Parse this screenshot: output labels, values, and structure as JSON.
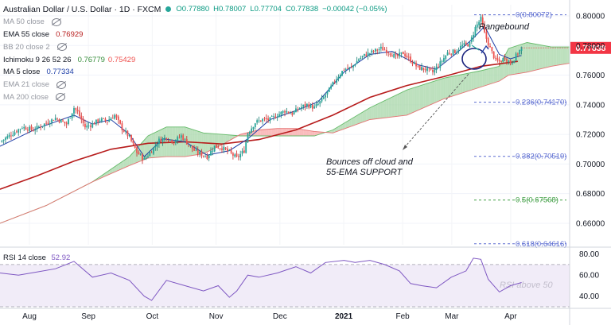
{
  "header": {
    "symbol": "Australian Dollar / U.S. Dollar · 1D · FXCM",
    "ohlc": {
      "o": "O0.77880",
      "h": "H0.78007",
      "l": "L0.77704",
      "c": "C0.77838",
      "chg": "−0.00042 (−0.05%)"
    }
  },
  "indicators": [
    {
      "label": "MA 50 close",
      "value": "",
      "value2": "",
      "hidden": true,
      "color": "#787b86"
    },
    {
      "label": "EMA 55 close",
      "value": "0.76929",
      "value2": "",
      "hidden": false,
      "color": "#b71c1c"
    },
    {
      "label": "BB 20 close 2",
      "value": "",
      "value2": "",
      "hidden": true,
      "color": "#787b86"
    },
    {
      "label": "Ichimoku 9 26 52 26",
      "value": "0.76779",
      "value2": "0.75429",
      "hidden": false,
      "color": "#388e3c",
      "color2": "#ef5350"
    },
    {
      "label": "MA 5 close",
      "value": "0.77334",
      "value2": "",
      "hidden": false,
      "color": "#1e3fa8"
    },
    {
      "label": "EMA 21 close",
      "value": "",
      "value2": "",
      "hidden": true,
      "color": "#787b86"
    },
    {
      "label": "MA 200 close",
      "value": "",
      "value2": "",
      "hidden": true,
      "color": "#787b86"
    }
  ],
  "rsi": {
    "label": "RSI 14 close",
    "value": "52.92"
  },
  "last_price": {
    "value": "0.77838",
    "color": "#f23645"
  },
  "annotations": {
    "rangebound": "Rangebound",
    "bounce_line1": "Bounces off cloud and",
    "bounce_line2": "55-EMA SUPPORT",
    "rsi_note": "RSI above 50"
  },
  "fib_levels": [
    {
      "label": "0(0.80072)",
      "value": 0.80072,
      "color": "#5b6cd1"
    },
    {
      "label": "0.236(0.74170)",
      "value": 0.7417,
      "color": "#5b6cd1"
    },
    {
      "label": "0.382(0.70519)",
      "value": 0.70519,
      "color": "#5b6cd1"
    },
    {
      "label": "0.5(0.67568)",
      "value": 0.67568,
      "color": "#43a047"
    },
    {
      "label": "0.618(0.64616)",
      "value": 0.64616,
      "color": "#5b6cd1"
    }
  ],
  "chart_data": [
    {
      "type": "candlestick",
      "title": "Australian Dollar / U.S. Dollar · 1D · FXCM",
      "ylim": [
        0.6455,
        0.8075
      ],
      "y_ticks": [
        "0.80000",
        "0.78000",
        "0.76000",
        "0.74000",
        "0.72000",
        "0.70000",
        "0.68000",
        "0.66000"
      ],
      "x_ticks": [
        "Aug",
        "Sep",
        "Oct",
        "Nov",
        "Dec",
        "2021",
        "Feb",
        "Mar",
        "Apr"
      ],
      "close_path": [
        [
          0,
          0.715
        ],
        [
          6,
          0.72
        ],
        [
          12,
          0.725
        ],
        [
          18,
          0.723
        ],
        [
          24,
          0.727
        ],
        [
          30,
          0.731
        ],
        [
          36,
          0.727
        ],
        [
          40,
          0.738
        ],
        [
          42,
          0.735
        ],
        [
          46,
          0.725
        ],
        [
          50,
          0.727
        ],
        [
          54,
          0.73
        ],
        [
          58,
          0.729
        ],
        [
          62,
          0.733
        ],
        [
          66,
          0.724
        ],
        [
          70,
          0.718
        ],
        [
          74,
          0.708
        ],
        [
          78,
          0.703
        ],
        [
          82,
          0.709
        ],
        [
          86,
          0.716
        ],
        [
          90,
          0.718
        ],
        [
          94,
          0.715
        ],
        [
          98,
          0.719
        ],
        [
          102,
          0.713
        ],
        [
          106,
          0.708
        ],
        [
          110,
          0.706
        ],
        [
          112,
          0.705
        ],
        [
          116,
          0.712
        ],
        [
          120,
          0.711
        ],
        [
          124,
          0.708
        ],
        [
          128,
          0.704
        ],
        [
          132,
          0.709
        ],
        [
          134,
          0.721
        ],
        [
          138,
          0.728
        ],
        [
          142,
          0.73
        ],
        [
          146,
          0.73
        ],
        [
          150,
          0.733
        ],
        [
          154,
          0.736
        ],
        [
          158,
          0.734
        ],
        [
          162,
          0.738
        ],
        [
          166,
          0.74
        ],
        [
          170,
          0.738
        ],
        [
          174,
          0.743
        ],
        [
          178,
          0.75
        ],
        [
          182,
          0.758
        ],
        [
          186,
          0.764
        ],
        [
          190,
          0.765
        ],
        [
          194,
          0.771
        ],
        [
          198,
          0.774
        ],
        [
          202,
          0.776
        ],
        [
          206,
          0.778
        ],
        [
          210,
          0.776
        ],
        [
          214,
          0.772
        ],
        [
          218,
          0.775
        ],
        [
          222,
          0.77
        ],
        [
          226,
          0.765
        ],
        [
          230,
          0.764
        ],
        [
          234,
          0.762
        ],
        [
          238,
          0.768
        ],
        [
          242,
          0.775
        ],
        [
          246,
          0.776
        ],
        [
          250,
          0.78
        ],
        [
          254,
          0.781
        ],
        [
          257,
          0.792
        ],
        [
          260,
          0.798
        ],
        [
          262,
          0.788
        ],
        [
          265,
          0.778
        ],
        [
          268,
          0.77
        ],
        [
          270,
          0.769
        ],
        [
          273,
          0.772
        ],
        [
          276,
          0.768
        ],
        [
          279,
          0.773
        ],
        [
          282,
          0.7784
        ]
      ],
      "ema55": [
        [
          0,
          0.683
        ],
        [
          20,
          0.692
        ],
        [
          40,
          0.702
        ],
        [
          60,
          0.71
        ],
        [
          80,
          0.714
        ],
        [
          100,
          0.715
        ],
        [
          120,
          0.7135
        ],
        [
          140,
          0.7165
        ],
        [
          160,
          0.723
        ],
        [
          180,
          0.733
        ],
        [
          200,
          0.745
        ],
        [
          220,
          0.753
        ],
        [
          240,
          0.759
        ],
        [
          260,
          0.766
        ],
        [
          280,
          0.7693
        ]
      ],
      "ma5": [
        [
          0,
          0.712
        ],
        [
          20,
          0.724
        ],
        [
          40,
          0.733
        ],
        [
          50,
          0.727
        ],
        [
          60,
          0.73
        ],
        [
          70,
          0.72
        ],
        [
          78,
          0.705
        ],
        [
          88,
          0.717
        ],
        [
          100,
          0.715
        ],
        [
          112,
          0.706
        ],
        [
          124,
          0.709
        ],
        [
          134,
          0.717
        ],
        [
          146,
          0.73
        ],
        [
          160,
          0.736
        ],
        [
          172,
          0.742
        ],
        [
          186,
          0.762
        ],
        [
          200,
          0.774
        ],
        [
          212,
          0.776
        ],
        [
          226,
          0.767
        ],
        [
          236,
          0.764
        ],
        [
          246,
          0.774
        ],
        [
          256,
          0.785
        ],
        [
          262,
          0.793
        ],
        [
          270,
          0.774
        ],
        [
          276,
          0.771
        ],
        [
          282,
          0.7733
        ]
      ],
      "cloud_a": [
        [
          0,
          0.66
        ],
        [
          25,
          0.672
        ],
        [
          50,
          0.688
        ],
        [
          70,
          0.705
        ],
        [
          80,
          0.719
        ],
        [
          90,
          0.725
        ],
        [
          100,
          0.725
        ],
        [
          110,
          0.721
        ],
        [
          120,
          0.72
        ],
        [
          130,
          0.719
        ],
        [
          140,
          0.719
        ],
        [
          150,
          0.719
        ],
        [
          160,
          0.719
        ],
        [
          170,
          0.719
        ],
        [
          180,
          0.723
        ],
        [
          200,
          0.738
        ],
        [
          220,
          0.75
        ],
        [
          240,
          0.758
        ],
        [
          260,
          0.763
        ],
        [
          270,
          0.766
        ],
        [
          275,
          0.778
        ],
        [
          285,
          0.782
        ],
        [
          298,
          0.779
        ],
        [
          308,
          0.779
        ]
      ],
      "cloud_b": [
        [
          0,
          0.66
        ],
        [
          25,
          0.672
        ],
        [
          50,
          0.688
        ],
        [
          70,
          0.699
        ],
        [
          80,
          0.704
        ],
        [
          90,
          0.705
        ],
        [
          100,
          0.705
        ],
        [
          110,
          0.707
        ],
        [
          120,
          0.713
        ],
        [
          130,
          0.72
        ],
        [
          140,
          0.723
        ],
        [
          150,
          0.724
        ],
        [
          160,
          0.724
        ],
        [
          170,
          0.722
        ],
        [
          180,
          0.721
        ],
        [
          200,
          0.73
        ],
        [
          220,
          0.733
        ],
        [
          240,
          0.744
        ],
        [
          260,
          0.752
        ],
        [
          270,
          0.756
        ],
        [
          275,
          0.76
        ],
        [
          285,
          0.762
        ],
        [
          298,
          0.766
        ],
        [
          308,
          0.768
        ]
      ],
      "rsi_series": [
        [
          0,
          62
        ],
        [
          10,
          60
        ],
        [
          20,
          63
        ],
        [
          30,
          66
        ],
        [
          40,
          73
        ],
        [
          50,
          58
        ],
        [
          60,
          62
        ],
        [
          70,
          55
        ],
        [
          78,
          40
        ],
        [
          82,
          36
        ],
        [
          90,
          55
        ],
        [
          100,
          50
        ],
        [
          110,
          45
        ],
        [
          118,
          50
        ],
        [
          124,
          39
        ],
        [
          128,
          45
        ],
        [
          134,
          60
        ],
        [
          140,
          58
        ],
        [
          150,
          62
        ],
        [
          160,
          68
        ],
        [
          168,
          62
        ],
        [
          176,
          72
        ],
        [
          186,
          74
        ],
        [
          192,
          72
        ],
        [
          200,
          74
        ],
        [
          208,
          70
        ],
        [
          216,
          64
        ],
        [
          222,
          52
        ],
        [
          228,
          50
        ],
        [
          236,
          48
        ],
        [
          244,
          58
        ],
        [
          252,
          64
        ],
        [
          256,
          76
        ],
        [
          260,
          75
        ],
        [
          264,
          56
        ],
        [
          270,
          44
        ],
        [
          276,
          50
        ],
        [
          282,
          53
        ]
      ],
      "rsi_ylim": [
        30,
        85
      ],
      "rsi_ticks": [
        "80.00",
        "60.00",
        "40.00"
      ]
    }
  ]
}
